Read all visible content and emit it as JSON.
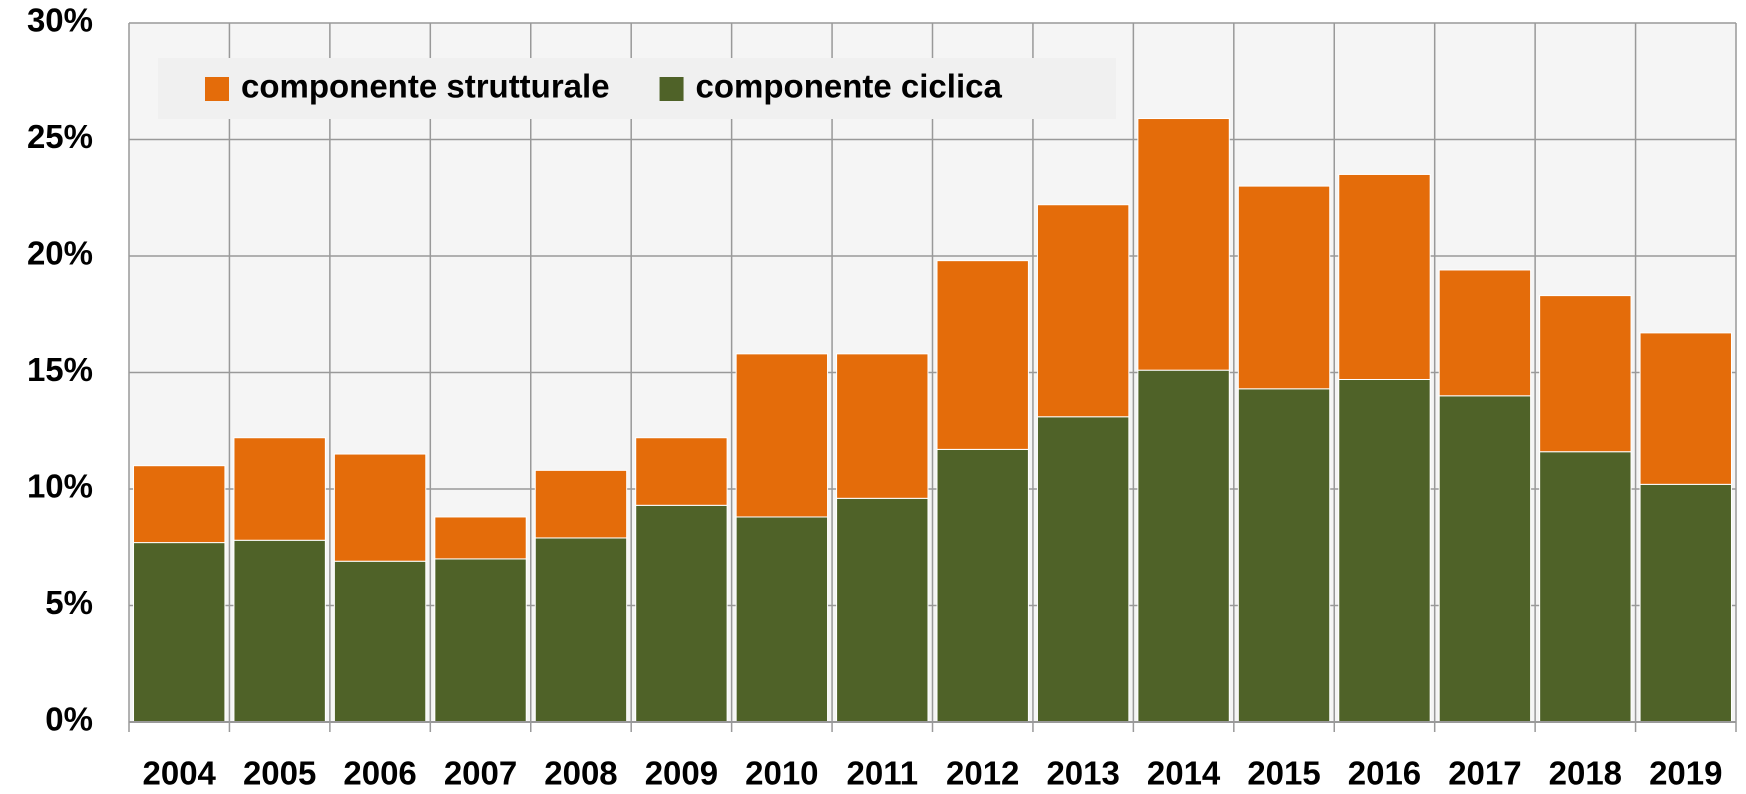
{
  "chart_data": {
    "type": "stacked-bar",
    "categories": [
      "2004",
      "2005",
      "2006",
      "2007",
      "2008",
      "2009",
      "2010",
      "2011",
      "2012",
      "2013",
      "2014",
      "2015",
      "2016",
      "2017",
      "2018",
      "2019"
    ],
    "series": [
      {
        "name": "componente strutturale",
        "color": "#e46c0a",
        "values": [
          3.3,
          4.4,
          4.6,
          1.8,
          2.9,
          2.9,
          7.0,
          6.2,
          8.1,
          9.1,
          10.8,
          8.7,
          8.8,
          5.4,
          6.7,
          6.5
        ]
      },
      {
        "name": "componente ciclica",
        "color": "#4f6228",
        "values": [
          7.7,
          7.8,
          6.9,
          7.0,
          7.9,
          9.3,
          8.8,
          9.6,
          11.7,
          13.1,
          15.1,
          14.3,
          14.7,
          14.0,
          11.6,
          10.2
        ]
      }
    ],
    "ylim": [
      0,
      30
    ],
    "yticks": [
      {
        "value": 0,
        "label": "0%"
      },
      {
        "value": 5,
        "label": "5%"
      },
      {
        "value": 10,
        "label": "10%"
      },
      {
        "value": 15,
        "label": "15%"
      },
      {
        "value": 20,
        "label": "20%"
      },
      {
        "value": 25,
        "label": "25%"
      },
      {
        "value": 30,
        "label": "30%"
      }
    ],
    "grid": true,
    "legend": "top-left"
  }
}
